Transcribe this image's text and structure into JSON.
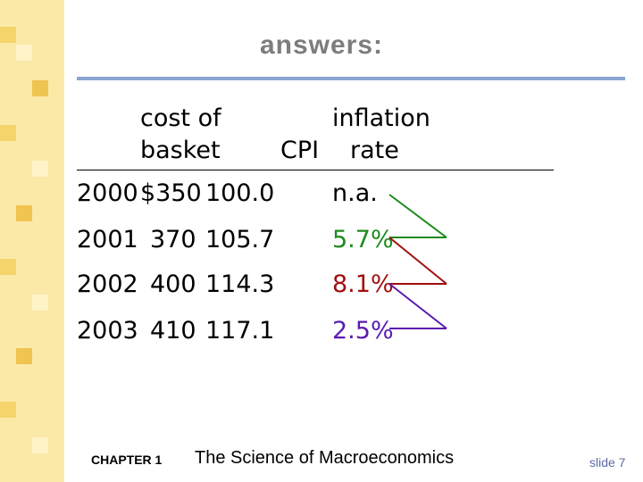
{
  "slide": {
    "title": "answers:",
    "headers": {
      "cost_line1": "cost of",
      "cost_line2": "basket",
      "cpi": "CPI",
      "inflation_line1": "inflation",
      "inflation_line2": "rate"
    },
    "rows": [
      {
        "year": "2000",
        "cost": "$350",
        "cpi": "100.0",
        "inflation": "n.a."
      },
      {
        "year": "2001",
        "cost": "370",
        "cpi": "105.7",
        "inflation": "5.7%"
      },
      {
        "year": "2002",
        "cost": "400",
        "cpi": "114.3",
        "inflation": "8.1%"
      },
      {
        "year": "2003",
        "cost": "410",
        "cpi": "117.1",
        "inflation": "2.5%"
      }
    ],
    "colors": {
      "rate_2001": "#1e8a1e",
      "rate_2002": "#a01010",
      "rate_2003": "#5a1ab0",
      "title": "#7d7d7d",
      "rule": "#8ca4d2"
    },
    "footer": {
      "chapter": "CHAPTER 1",
      "book_title": "The Science of Macroeconomics",
      "slide_number": "slide 7"
    }
  }
}
